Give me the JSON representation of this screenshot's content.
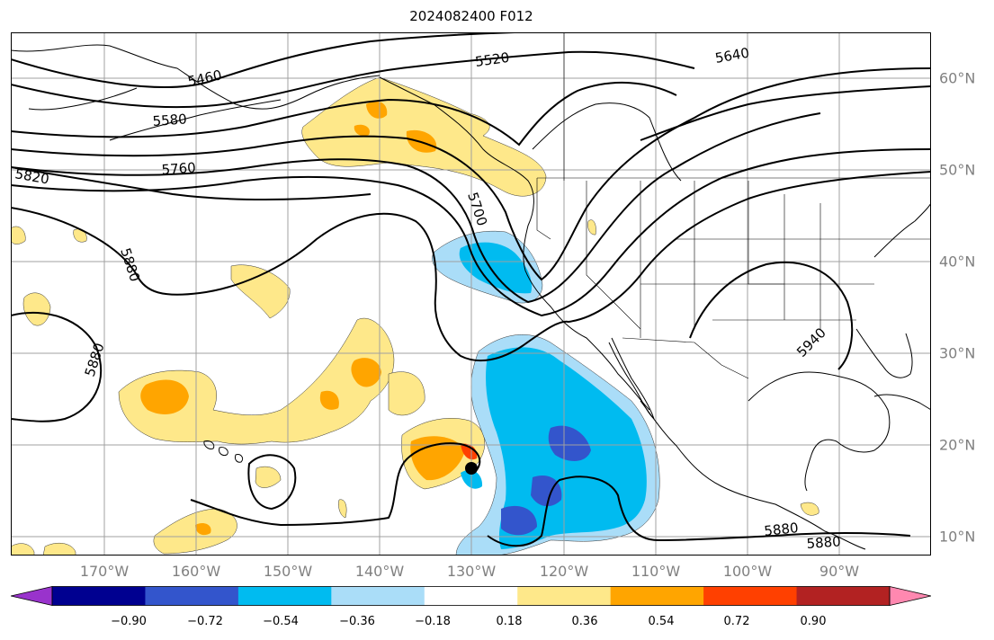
{
  "title": "2024082400 F012",
  "lon_labels": [
    {
      "text": "170°W",
      "lon": -170
    },
    {
      "text": "160°W",
      "lon": -160
    },
    {
      "text": "150°W",
      "lon": -150
    },
    {
      "text": "140°W",
      "lon": -140
    },
    {
      "text": "130°W",
      "lon": -130
    },
    {
      "text": "120°W",
      "lon": -120
    },
    {
      "text": "110°W",
      "lon": -110
    },
    {
      "text": "100°W",
      "lon": -100
    },
    {
      "text": "90°W",
      "lon": -90
    }
  ],
  "lat_labels": [
    {
      "text": "60°N",
      "lat": 60
    },
    {
      "text": "50°N",
      "lat": 50
    },
    {
      "text": "40°N",
      "lat": 40
    },
    {
      "text": "30°N",
      "lat": 30
    },
    {
      "text": "20°N",
      "lat": 20
    },
    {
      "text": "10°N",
      "lat": 10
    }
  ],
  "contour_labels": [
    "5460",
    "5520",
    "5580",
    "5640",
    "5700",
    "5760",
    "5820",
    "5880",
    "5880",
    "5880",
    "5880",
    "5940"
  ],
  "colorbar": {
    "ticks": [
      "−0.90",
      "−0.72",
      "−0.54",
      "−0.36",
      "−0.18",
      "0.18",
      "0.36",
      "0.54",
      "0.72",
      "0.90"
    ],
    "colors": [
      "#9933cc",
      "#000090",
      "#3355cc",
      "#00bbf0",
      "#aaddf8",
      "#ffffff",
      "#fee88a",
      "#ffa500",
      "#ff4000",
      "#b22222",
      "#ff88b0"
    ]
  },
  "marker": "storm-center-dot"
}
